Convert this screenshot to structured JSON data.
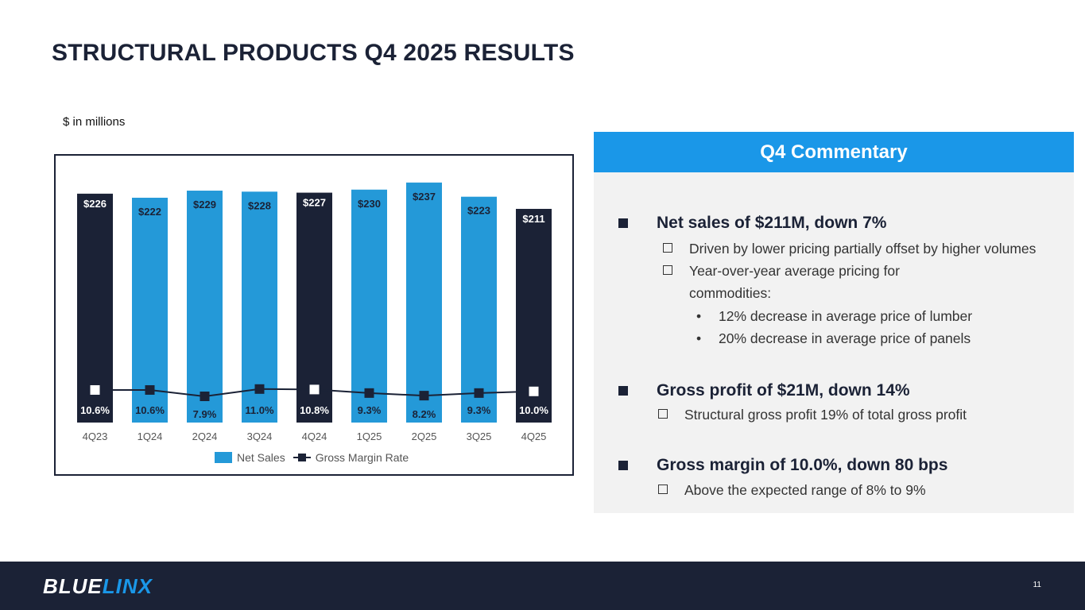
{
  "title": "STRUCTURAL PRODUCTS Q4 2025 RESULTS",
  "units_note": "$ in millions",
  "chart_data": {
    "type": "bar",
    "categories": [
      "4Q23",
      "1Q24",
      "2Q24",
      "3Q24",
      "4Q24",
      "1Q25",
      "2Q25",
      "3Q25",
      "4Q25"
    ],
    "series": [
      {
        "name": "Net Sales",
        "type": "bar",
        "values": [
          226,
          222,
          229,
          228,
          227,
          230,
          237,
          223,
          211
        ],
        "labels": [
          "$226",
          "$222",
          "$229",
          "$228",
          "$227",
          "$230",
          "$237",
          "$223",
          "$211"
        ],
        "highlight": [
          true,
          false,
          false,
          false,
          true,
          false,
          false,
          false,
          true
        ]
      },
      {
        "name": "Gross Margin Rate",
        "type": "line",
        "values": [
          10.6,
          10.6,
          7.9,
          11.0,
          10.8,
          9.3,
          8.2,
          9.3,
          10.0
        ],
        "labels": [
          "10.6%",
          "10.6%",
          "7.9%",
          "11.0%",
          "10.8%",
          "9.3%",
          "8.2%",
          "9.3%",
          "10.0%"
        ]
      }
    ],
    "legend": [
      "Net Sales",
      "Gross Margin Rate"
    ],
    "legend_position": "bottom",
    "colors": {
      "bar": "#2499d8",
      "bar_highlight": "#1b2236",
      "line": "#1b2236"
    }
  },
  "commentary": {
    "header": "Q4 Commentary",
    "b1": "Net sales of $211M, down 7%",
    "b1_s1": "Driven by lower pricing partially offset by higher volumes",
    "b1_s2a": "Year-over-year average pricing for",
    "b1_s2b": "commodities:",
    "b1_d1": "12% decrease in average price of lumber",
    "b1_d2": "20% decrease in average price of panels",
    "b2": "Gross profit of $21M, down 14%",
    "b2_s1": "Structural gross profit 19% of total gross profit",
    "b3": "Gross margin of 10.0%, down 80 bps",
    "b3_s1": "Above the expected range of 8% to 9%"
  },
  "footer": {
    "logo_a": "BLUE",
    "logo_b": "LINX",
    "page": "11"
  }
}
